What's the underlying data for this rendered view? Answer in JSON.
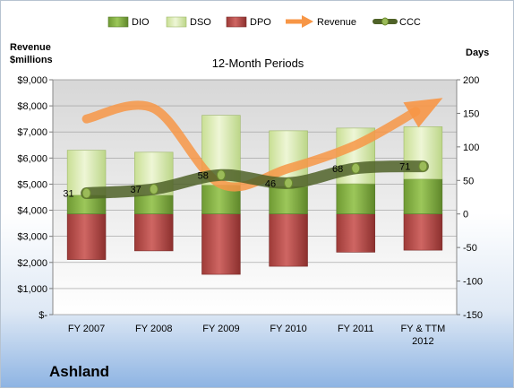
{
  "chart_data": {
    "type": "bar",
    "title": "12-Month Periods",
    "company": "Ashland",
    "ylabel_left": [
      "Revenue",
      "$millions"
    ],
    "ylabel_right": "Days",
    "ylim_left": [
      0,
      9000
    ],
    "ylim_right": [
      -150,
      200
    ],
    "yticks_left": [
      "$-",
      "$1,000",
      "$2,000",
      "$3,000",
      "$4,000",
      "$5,000",
      "$6,000",
      "$7,000",
      "$8,000",
      "$9,000"
    ],
    "yticks_right": [
      "-150",
      "-100",
      "-50",
      "0",
      "50",
      "100",
      "150",
      "200"
    ],
    "categories": [
      "FY 2007",
      "FY 2008",
      "FY 2009",
      "FY 2010",
      "FY 2011",
      [
        "FY & TTM",
        "2012"
      ]
    ],
    "series": [
      {
        "name": "DIO",
        "axis": "right",
        "kind": "stacked-bar",
        "color": "#7aa53a",
        "values": [
          28,
          28,
          43,
          41,
          45,
          52
        ]
      },
      {
        "name": "DSO",
        "axis": "right",
        "kind": "stacked-bar",
        "color": "#d7e9ad",
        "values": [
          67,
          64,
          104,
          83,
          83,
          78
        ]
      },
      {
        "name": "DPO",
        "axis": "right",
        "kind": "bar-negative",
        "color": "#c0504d",
        "values": [
          -68,
          -55,
          -90,
          -78,
          -57,
          -54
        ]
      },
      {
        "name": "Revenue",
        "axis": "left",
        "kind": "arrow-line",
        "color": "#f79646",
        "values": [
          7500,
          7900,
          5000,
          5600,
          6500,
          8200
        ]
      },
      {
        "name": "CCC",
        "axis": "right",
        "kind": "line",
        "color": "#4f6228",
        "values": [
          31,
          37,
          58,
          46,
          68,
          71
        ]
      }
    ],
    "data_labels": [
      "31",
      "37",
      "58",
      "46",
      "68",
      "71"
    ]
  }
}
